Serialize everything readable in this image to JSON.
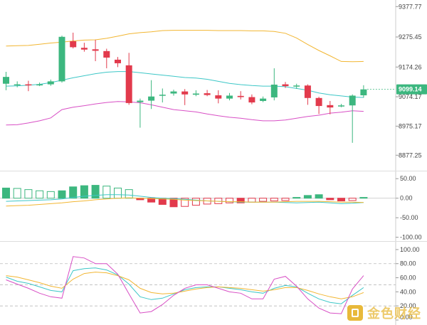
{
  "chart_data": [
    {
      "type": "candlestick",
      "panel": "price",
      "title": "",
      "ylim": [
        8830,
        9400
      ],
      "y_ticks": [
        "9377.77",
        "9275.45",
        "9174.26",
        "9074.17",
        "8975.17",
        "8877.25"
      ],
      "y_tick_values": [
        9377.77,
        9275.45,
        9174.26,
        9074.17,
        8975.17,
        8877.25
      ],
      "last_price": "9099.14",
      "candles": [
        {
          "o": 9118,
          "c": 9141,
          "h": 9158,
          "l": 9096
        },
        {
          "o": 9115,
          "c": 9116,
          "h": 9126,
          "l": 9106
        },
        {
          "o": 9116,
          "c": 9114,
          "h": 9128,
          "l": 9093
        },
        {
          "o": 9114,
          "c": 9116,
          "h": 9122,
          "l": 9110
        },
        {
          "o": 9116,
          "c": 9126,
          "h": 9132,
          "l": 9111
        },
        {
          "o": 9126,
          "c": 9276,
          "h": 9280,
          "l": 9122
        },
        {
          "o": 9261,
          "c": 9241,
          "h": 9290,
          "l": 9237
        },
        {
          "o": 9239,
          "c": 9233,
          "h": 9256,
          "l": 9226
        },
        {
          "o": 9234,
          "c": 9229,
          "h": 9266,
          "l": 9194
        },
        {
          "o": 9228,
          "c": 9206,
          "h": 9236,
          "l": 9170
        },
        {
          "o": 9199,
          "c": 9187,
          "h": 9208,
          "l": 9174
        },
        {
          "o": 9180,
          "c": 9053,
          "h": 9222,
          "l": 9047
        },
        {
          "o": 9056,
          "c": 9061,
          "h": 9068,
          "l": 8970
        },
        {
          "o": 9061,
          "c": 9075,
          "h": 9130,
          "l": 9033
        },
        {
          "o": 9079,
          "c": 9081,
          "h": 9102,
          "l": 9055
        },
        {
          "o": 9085,
          "c": 9092,
          "h": 9098,
          "l": 9078
        },
        {
          "o": 9092,
          "c": 9082,
          "h": 9100,
          "l": 9046
        },
        {
          "o": 9081,
          "c": 9085,
          "h": 9096,
          "l": 9076
        },
        {
          "o": 9086,
          "c": 9080,
          "h": 9097,
          "l": 9076
        },
        {
          "o": 9079,
          "c": 9068,
          "h": 9096,
          "l": 9052
        },
        {
          "o": 9068,
          "c": 9078,
          "h": 9087,
          "l": 9062
        },
        {
          "o": 9077,
          "c": 9073,
          "h": 9093,
          "l": 9065
        },
        {
          "o": 9073,
          "c": 9055,
          "h": 9082,
          "l": 9049
        },
        {
          "o": 9060,
          "c": 9068,
          "h": 9075,
          "l": 9056
        },
        {
          "o": 9072,
          "c": 9115,
          "h": 9170,
          "l": 9062
        },
        {
          "o": 9116,
          "c": 9110,
          "h": 9124,
          "l": 9104
        },
        {
          "o": 9109,
          "c": 9112,
          "h": 9118,
          "l": 9101
        },
        {
          "o": 9112,
          "c": 9070,
          "h": 9116,
          "l": 9047
        },
        {
          "o": 9070,
          "c": 9043,
          "h": 9074,
          "l": 9016
        },
        {
          "o": 9046,
          "c": 9038,
          "h": 9060,
          "l": 9015
        },
        {
          "o": 9043,
          "c": 9045,
          "h": 9050,
          "l": 9039
        },
        {
          "o": 9045,
          "c": 9078,
          "h": 9082,
          "l": 8919
        },
        {
          "o": 9079,
          "c": 9099,
          "h": 9113,
          "l": 9071
        }
      ],
      "bollinger": {
        "upper": [
          9245,
          9246,
          9247,
          9251,
          9255,
          9258,
          9262,
          9265,
          9266,
          9271,
          9278,
          9286,
          9290,
          9293,
          9297,
          9298,
          9298,
          9298,
          9298,
          9297,
          9297,
          9297,
          9296,
          9296,
          9294,
          9288,
          9272,
          9250,
          9230,
          9212,
          9193,
          9192,
          9193
        ],
        "middle": [
          9110,
          9111,
          9113,
          9116,
          9122,
          9130,
          9138,
          9145,
          9152,
          9157,
          9159,
          9159,
          9155,
          9151,
          9147,
          9143,
          9139,
          9137,
          9133,
          9126,
          9119,
          9115,
          9112,
          9110,
          9110,
          9108,
          9102,
          9096,
          9087,
          9081,
          9077,
          9073,
          9072
        ],
        "lower": [
          8979,
          8980,
          8986,
          8993,
          9003,
          9031,
          9039,
          9044,
          9050,
          9055,
          9058,
          9057,
          9054,
          9047,
          9039,
          9031,
          9027,
          9023,
          9016,
          9010,
          9005,
          9002,
          8997,
          8993,
          8993,
          8996,
          9002,
          9008,
          9012,
          9019,
          9022,
          9027,
          9025
        ]
      },
      "colors": {
        "up": "#3cb77f",
        "down": "#e23a4c",
        "upper": "#f2b632",
        "middle": "#3dc7c7",
        "lower": "#d84fc5",
        "axis": "#cccccc",
        "badge": "#3cb77f"
      }
    },
    {
      "type": "bar",
      "panel": "macd",
      "title": "",
      "ylim": [
        -108,
        65
      ],
      "y_ticks": [
        "50.00",
        "0.00",
        "-50.00",
        "-100.00"
      ],
      "y_tick_values": [
        50,
        0,
        -50,
        -100
      ],
      "histogram": [
        26,
        25,
        22,
        19,
        17,
        19,
        29,
        32,
        33,
        31,
        26,
        22,
        -4,
        -10,
        -16,
        -22,
        -21,
        -18,
        -15,
        -14,
        -12,
        -12,
        -10,
        -8,
        -7,
        -6,
        2,
        7,
        9,
        -4,
        -7,
        -6,
        2
      ],
      "series": [
        {
          "values": [
            -8,
            -7,
            -6,
            -5,
            -4,
            -2,
            2,
            5,
            7,
            9,
            9,
            8,
            5,
            2,
            0,
            -1,
            -3,
            -5,
            -7,
            -8,
            -9,
            -10,
            -10,
            -10,
            -10,
            -11,
            -12,
            -11,
            -10,
            -12,
            -14,
            -13,
            -11
          ],
          "color": "#3dc7c7"
        },
        {
          "values": [
            -20,
            -19,
            -18,
            -16,
            -14,
            -12,
            -9,
            -7,
            -4,
            -2,
            0,
            1,
            0,
            -1,
            -2,
            -3,
            -5,
            -6,
            -7,
            -8,
            -9,
            -9,
            -10,
            -10,
            -10,
            -9,
            -8,
            -8,
            -8,
            -9,
            -10,
            -10,
            -11
          ],
          "color": "#f2b632"
        }
      ],
      "colors": {
        "hist_up": "#3cb77f",
        "hist_down": "#e23a4c",
        "zero": "#cccccc"
      }
    },
    {
      "type": "line",
      "panel": "kdj",
      "title": "",
      "ylim": [
        0,
        110
      ],
      "y_ticks": [
        "100.00",
        "80.00",
        "60.00",
        "40.00",
        "20.00",
        "0.00"
      ],
      "y_tick_values": [
        100,
        80,
        60,
        40,
        20,
        0
      ],
      "dashed_levels": [
        80,
        50,
        20
      ],
      "series": [
        {
          "values": [
            61,
            55,
            52,
            47,
            42,
            40,
            70,
            73,
            74,
            71,
            64,
            51,
            33,
            29,
            31,
            37,
            43,
            46,
            47,
            47,
            45,
            43,
            40,
            38,
            45,
            49,
            47,
            38,
            30,
            25,
            23,
            35,
            46
          ],
          "color": "#3dc7c7"
        },
        {
          "values": [
            63,
            61,
            57,
            53,
            48,
            45,
            58,
            66,
            68,
            67,
            63,
            57,
            45,
            39,
            37,
            38,
            41,
            44,
            46,
            47,
            46,
            45,
            43,
            41,
            43,
            46,
            46,
            42,
            37,
            33,
            30,
            33,
            39
          ],
          "color": "#f2b632"
        },
        {
          "values": [
            57,
            51,
            45,
            38,
            33,
            31,
            90,
            88,
            80,
            80,
            65,
            37,
            10,
            12,
            22,
            35,
            45,
            50,
            50,
            45,
            40,
            38,
            30,
            30,
            58,
            62,
            48,
            30,
            17,
            10,
            9,
            44,
            63
          ],
          "color": "#d84fc5"
        }
      ]
    }
  ],
  "watermark": {
    "text": "金色财经",
    "icon": "gold-coin-logo-icon"
  },
  "kdj_bottom_label": "0.00"
}
